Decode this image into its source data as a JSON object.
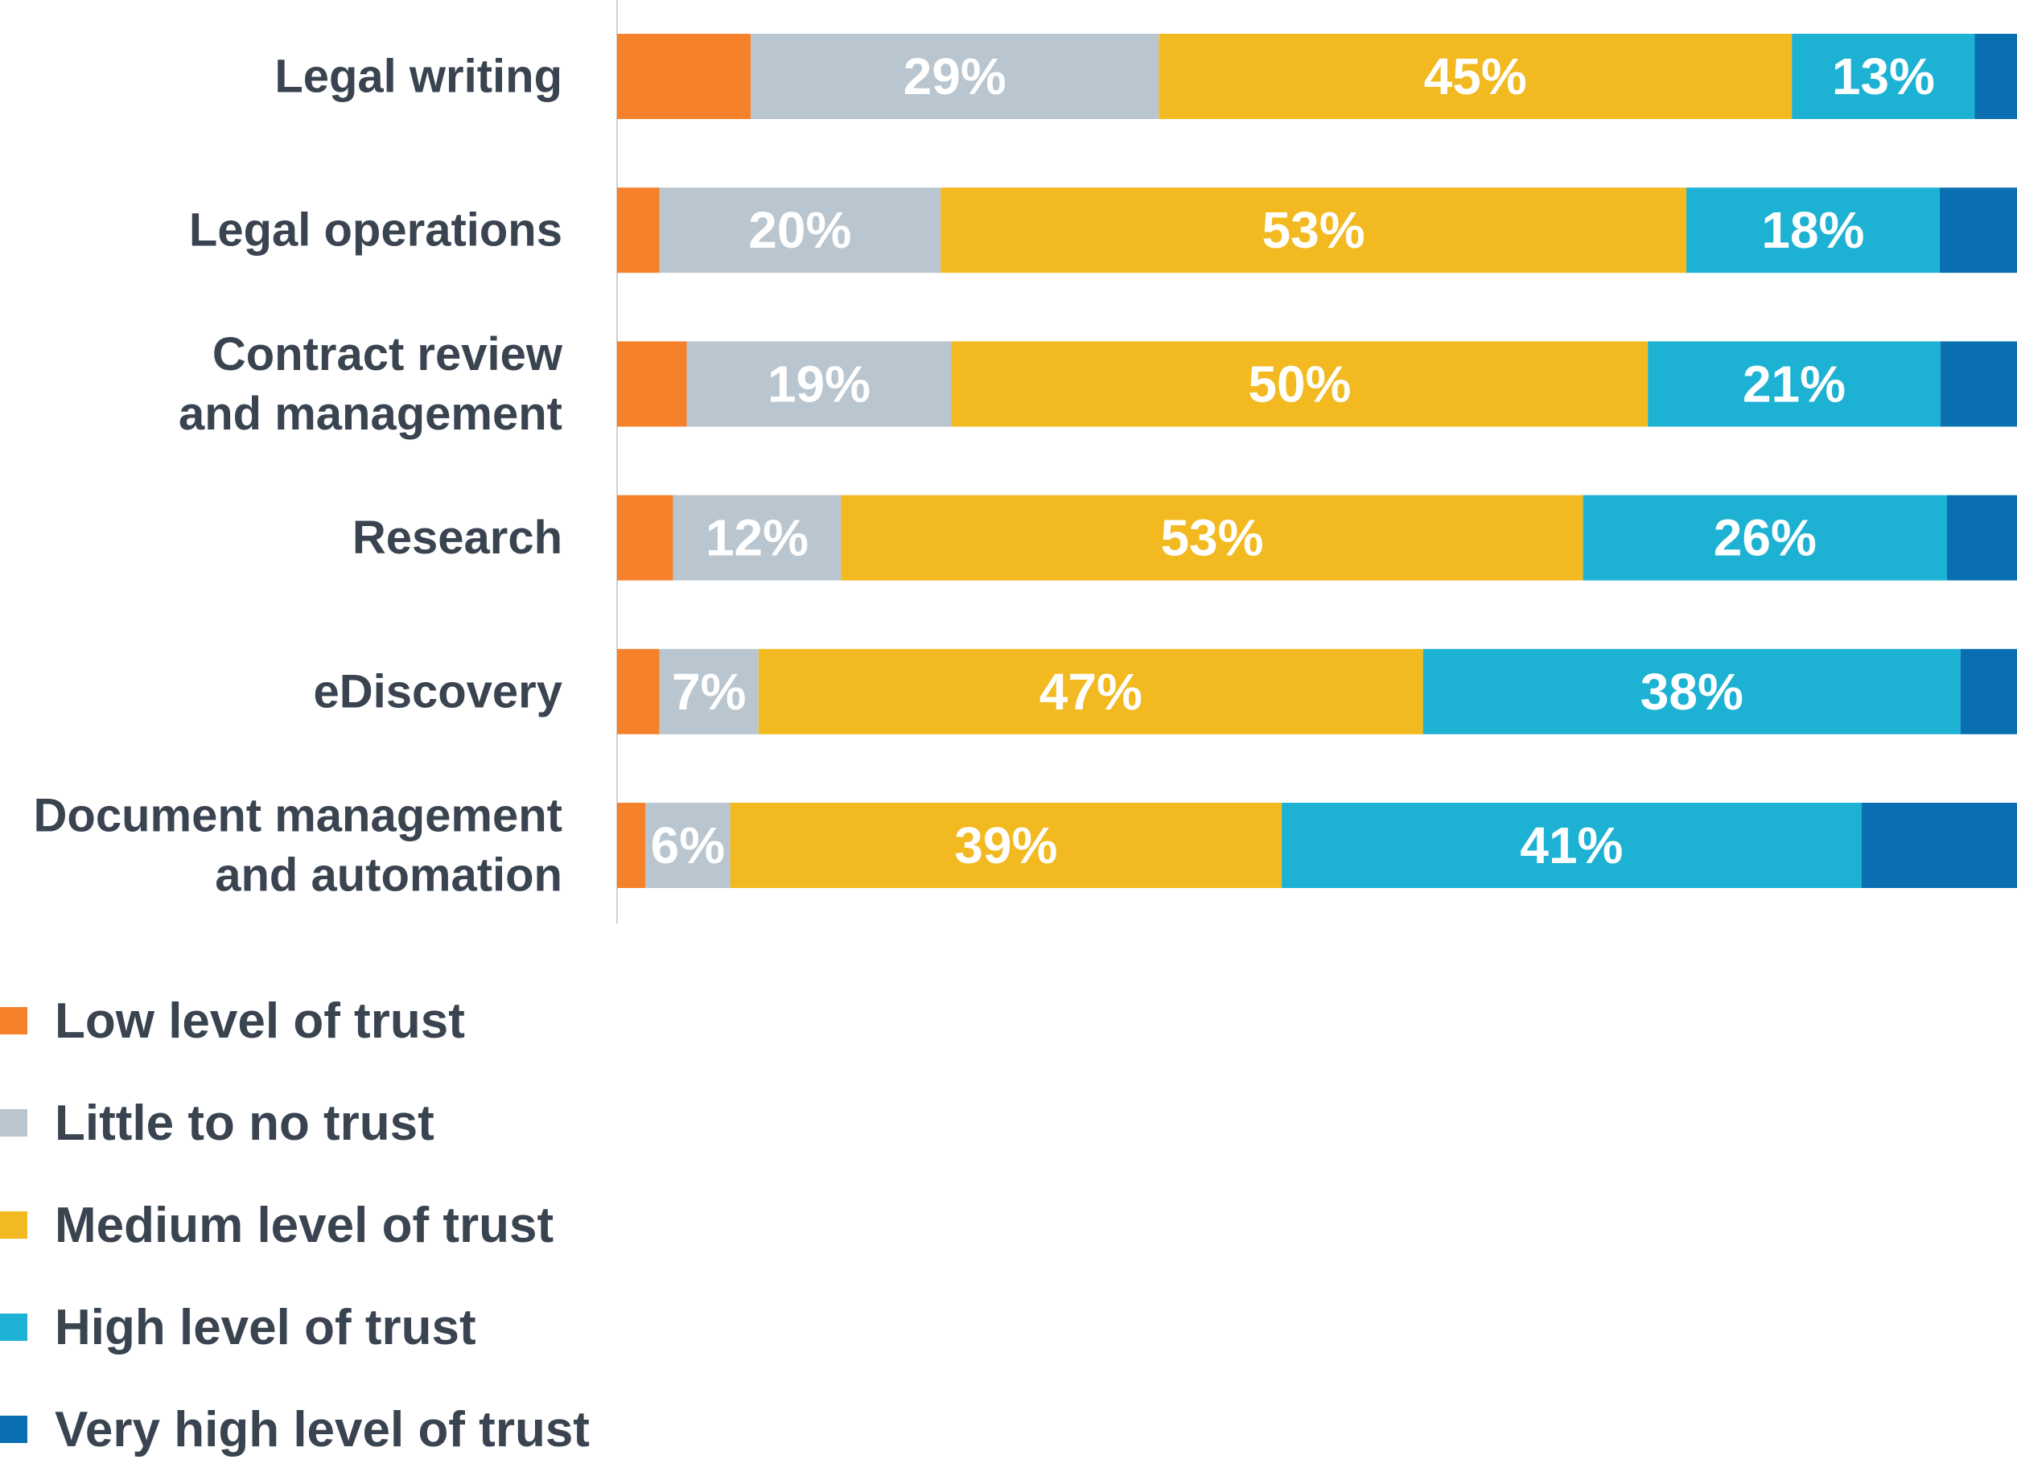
{
  "chart_data": {
    "type": "bar",
    "orientation": "horizontal",
    "stacked": true,
    "categories": [
      "Legal writing",
      "Legal operations",
      "Contract review and management",
      "Research",
      "eDiscovery",
      "Document management and automation"
    ],
    "category_lines": [
      [
        "Legal writing"
      ],
      [
        "Legal operations"
      ],
      [
        "Contract review",
        "and management"
      ],
      [
        "Research"
      ],
      [
        "eDiscovery"
      ],
      [
        "Document management",
        "and automation"
      ]
    ],
    "series": [
      {
        "name": "Low level of trust",
        "color": "#f5822a",
        "values": [
          9.5,
          3,
          5,
          4,
          3,
          2
        ],
        "labels": [
          "",
          "",
          "",
          "",
          "",
          ""
        ]
      },
      {
        "name": "Little to no trust",
        "color": "#b9c5cf",
        "values": [
          29,
          20,
          19,
          12,
          7,
          6
        ],
        "labels": [
          "29%",
          "20%",
          "19%",
          "12%",
          "7%",
          "6%"
        ]
      },
      {
        "name": "Medium level of trust",
        "color": "#f2b920",
        "values": [
          45,
          53,
          50,
          53,
          47,
          39
        ],
        "labels": [
          "45%",
          "53%",
          "50%",
          "53%",
          "47%",
          "39%"
        ]
      },
      {
        "name": "High level of trust",
        "color": "#1db2d3",
        "values": [
          13,
          18,
          21,
          26,
          38,
          41
        ],
        "labels": [
          "13%",
          "18%",
          "21%",
          "26%",
          "38%",
          "41%"
        ]
      },
      {
        "name": "Very high level of trust",
        "color": "#0a6fb0",
        "values": [
          3,
          5.5,
          5.5,
          5,
          4,
          11
        ],
        "labels": [
          "",
          "",
          "",
          "",
          "",
          ""
        ]
      }
    ],
    "xlim": [
      0,
      100
    ],
    "grid": false,
    "legend_position": "bottom-left"
  },
  "legend": {
    "items": [
      {
        "label": "Low level of trust",
        "color": "#f5822a"
      },
      {
        "label": "Little to no trust",
        "color": "#b9c5cf"
      },
      {
        "label": "Medium level of trust",
        "color": "#f2b920"
      },
      {
        "label": "High level of trust",
        "color": "#1db2d3"
      },
      {
        "label": "Very high level of trust",
        "color": "#0a6fb0"
      }
    ]
  }
}
